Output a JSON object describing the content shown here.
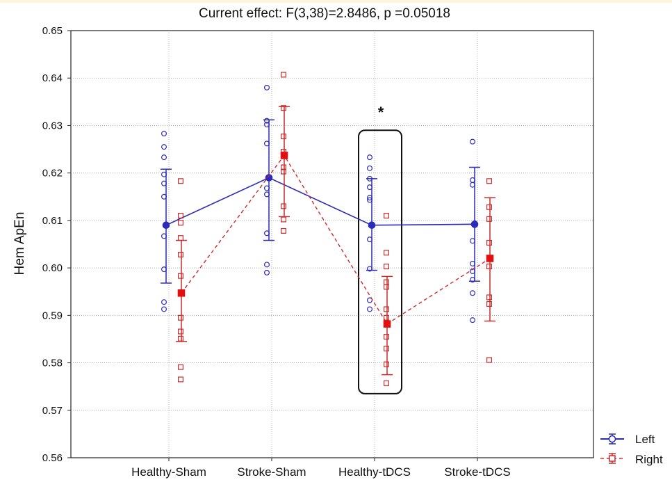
{
  "chart_data": {
    "type": "scatter",
    "title": "Current effect: F(3,38)=2.8486, p =0.05018",
    "xlabel": "",
    "ylabel": "Hem ApEn",
    "categories": [
      "Healthy-Sham",
      "Stroke-Sham",
      "Healthy-tDCS",
      "Stroke-tDCS"
    ],
    "ylim": [
      0.56,
      0.65
    ],
    "yticks": [
      "0.56",
      "0.57",
      "0.58",
      "0.59",
      "0.60",
      "0.61",
      "0.62",
      "0.63",
      "0.64",
      "0.65"
    ],
    "grid": true,
    "legend_position": "bottom-right",
    "annotation": "*",
    "highlight_category": "Healthy-tDCS",
    "series": [
      {
        "name": "Left",
        "color": "#2b2bb8",
        "marker": "circle",
        "line_style": "solid",
        "means": [
          0.609,
          0.619,
          0.609,
          0.6092
        ],
        "ci_low": [
          0.5968,
          0.6058,
          0.5995,
          0.5972
        ],
        "ci_high": [
          0.6208,
          0.6312,
          0.6188,
          0.6212
        ],
        "points": [
          [
            0.6283,
            0.6255,
            0.6233,
            0.6197,
            0.6178,
            0.615,
            0.6067,
            0.5997,
            0.5928,
            0.5913
          ],
          [
            0.638,
            0.631,
            0.6302,
            0.6262,
            0.6168,
            0.6155,
            0.6073,
            0.6007,
            0.599
          ],
          [
            0.6233,
            0.621,
            0.6188,
            0.617,
            0.6148,
            0.6143,
            0.606,
            0.5998,
            0.5932,
            0.5913
          ],
          [
            0.6266,
            0.6185,
            0.6175,
            0.6057,
            0.6009,
            0.5993,
            0.5975,
            0.5947,
            0.589
          ]
        ]
      },
      {
        "name": "Right",
        "color": "#cc2a2a",
        "marker": "square",
        "line_style": "dashed",
        "means": [
          0.5947,
          0.6237,
          0.5882,
          0.602
        ],
        "ci_low": [
          0.5845,
          0.6108,
          0.5775,
          0.5888
        ],
        "ci_high": [
          0.6058,
          0.634,
          0.5982,
          0.6148
        ],
        "points": [
          [
            0.6183,
            0.611,
            0.6095,
            0.6063,
            0.6028,
            0.5983,
            0.5895,
            0.5866,
            0.5851,
            0.5791,
            0.5765
          ],
          [
            0.6407,
            0.6337,
            0.6277,
            0.6245,
            0.6212,
            0.6203,
            0.613,
            0.6102,
            0.6078
          ],
          [
            0.611,
            0.6032,
            0.6003,
            0.597,
            0.596,
            0.5913,
            0.5895,
            0.5855,
            0.583,
            0.5797,
            0.5757
          ],
          [
            0.6183,
            0.6128,
            0.6103,
            0.6053,
            0.6003,
            0.5938,
            0.5924,
            0.5806
          ]
        ]
      }
    ]
  }
}
